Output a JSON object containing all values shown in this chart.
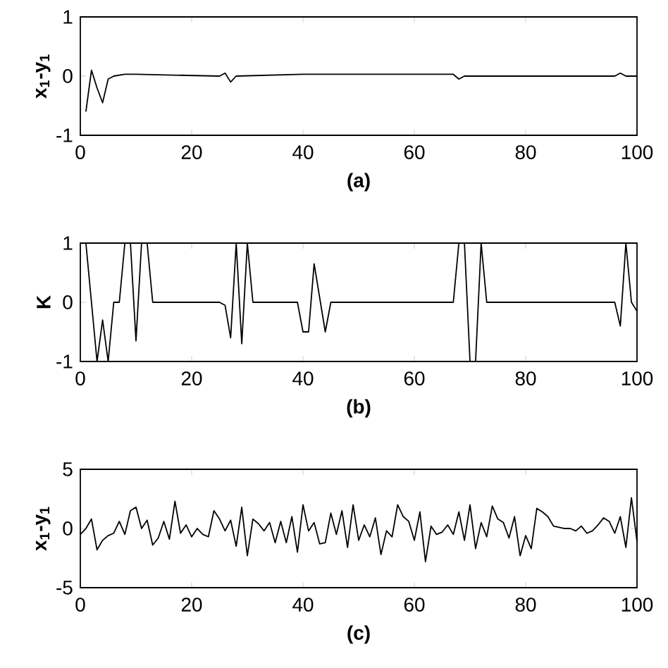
{
  "chart_data": [
    {
      "type": "line",
      "xlabel": "(a)",
      "ylabel": "x$_{1}$-y$_{1}$",
      "color": "#000000",
      "x": [
        1,
        2,
        3,
        4,
        5,
        6,
        8,
        10,
        25,
        26,
        27,
        28,
        40,
        67,
        68,
        69,
        96,
        97,
        98,
        100
      ],
      "values": [
        -0.6,
        0.1,
        -0.2,
        -0.45,
        -0.05,
        0,
        0.03,
        0.03,
        0,
        0.05,
        -0.1,
        0,
        0.03,
        0.03,
        -0.05,
        0,
        0,
        0.05,
        0,
        0
      ],
      "xlim": [
        0,
        100
      ],
      "ylim": [
        -1,
        1
      ],
      "xticks": [
        0,
        20,
        40,
        60,
        80,
        100
      ],
      "yticks": [
        -1,
        0,
        1
      ]
    },
    {
      "type": "line",
      "xlabel": "(b)",
      "ylabel": "K",
      "color": "#000000",
      "x": [
        1,
        3,
        4,
        5,
        6,
        7,
        8,
        9,
        10,
        11,
        12,
        13,
        25,
        26,
        27,
        28,
        29,
        30,
        31,
        39,
        40,
        41,
        42,
        44,
        45,
        67,
        68,
        69,
        70,
        71,
        72,
        73,
        96,
        97,
        98,
        99,
        100
      ],
      "values": [
        1,
        -1,
        -0.3,
        -1,
        0,
        0,
        1,
        1,
        -0.65,
        1,
        1,
        0,
        0,
        -0.05,
        -0.6,
        1,
        -0.7,
        1,
        0,
        0,
        -0.5,
        -0.5,
        0.65,
        -0.5,
        0,
        0,
        1,
        1,
        -1,
        -1,
        1,
        0,
        0,
        -0.4,
        1,
        0,
        -0.15
      ],
      "xlim": [
        0,
        100
      ],
      "ylim": [
        -1,
        1
      ],
      "xticks": [
        0,
        20,
        40,
        60,
        80,
        100
      ],
      "yticks": [
        -1,
        0,
        1
      ]
    },
    {
      "type": "line",
      "xlabel": "(c)",
      "ylabel": "x$_{1}$-y$_{1}$",
      "color": "#000000",
      "x": [
        0,
        1,
        2,
        3,
        4,
        5,
        6,
        7,
        8,
        9,
        10,
        11,
        12,
        13,
        14,
        15,
        16,
        17,
        18,
        19,
        20,
        21,
        22,
        23,
        24,
        25,
        26,
        27,
        28,
        29,
        30,
        31,
        32,
        33,
        34,
        35,
        36,
        37,
        38,
        39,
        40,
        41,
        42,
        43,
        44,
        45,
        46,
        47,
        48,
        49,
        50,
        51,
        52,
        53,
        54,
        55,
        56,
        57,
        58,
        59,
        60,
        61,
        62,
        63,
        64,
        65,
        66,
        67,
        68,
        69,
        70,
        71,
        72,
        73,
        74,
        75,
        76,
        77,
        78,
        79,
        80,
        81,
        82,
        83,
        84,
        85,
        86,
        87,
        88,
        89,
        90,
        91,
        92,
        93,
        94,
        95,
        96,
        97,
        98,
        99,
        100
      ],
      "values": [
        -0.5,
        0,
        0.8,
        -1.8,
        -1,
        -0.6,
        -0.4,
        0.6,
        -0.5,
        1.5,
        1.8,
        0,
        0.7,
        -1.4,
        -0.8,
        0.6,
        -0.9,
        2.3,
        -0.4,
        0.3,
        -0.7,
        0,
        -0.5,
        -0.7,
        1.5,
        0.8,
        -0.2,
        0.7,
        -1.5,
        1.8,
        -2.3,
        0.8,
        0.4,
        -0.2,
        0.5,
        -1.2,
        0.6,
        -1.2,
        1,
        -2,
        2,
        -0.2,
        0.5,
        -1.3,
        -1.2,
        1.3,
        -0.5,
        1.5,
        -1.6,
        2,
        -1,
        0.3,
        -0.7,
        0.9,
        -2.2,
        -0.2,
        -0.7,
        2,
        1,
        0.6,
        -1,
        1.4,
        -2.8,
        0.2,
        -0.5,
        -0.3,
        0.3,
        -0.5,
        1.4,
        -1,
        2,
        -1.7,
        0.5,
        -0.7,
        1.9,
        0.8,
        0.5,
        -0.8,
        1,
        -2.3,
        -0.6,
        -1.7,
        1.7,
        1.4,
        1,
        0.2,
        0.1,
        0,
        0,
        -0.2,
        0.2,
        -0.4,
        -0.2,
        0.3,
        0.9,
        0.6,
        -0.4,
        1,
        -1.6,
        2.6,
        -1.1
      ],
      "xlim": [
        0,
        100
      ],
      "ylim": [
        -5,
        5
      ],
      "xticks": [
        0,
        20,
        40,
        60,
        80,
        100
      ],
      "yticks": [
        -5,
        0,
        5
      ]
    }
  ]
}
